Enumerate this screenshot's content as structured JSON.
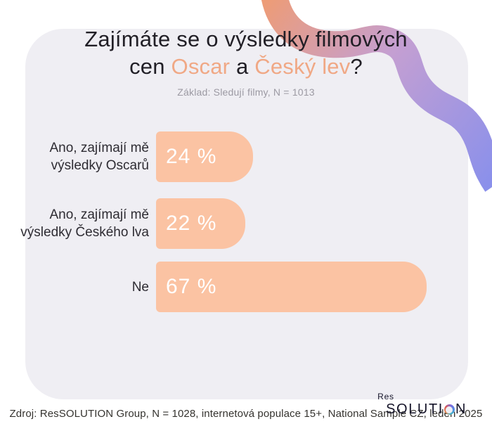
{
  "chart_data": {
    "type": "bar",
    "orientation": "horizontal",
    "title": {
      "line1": "Zajímáte se o výsledky filmových",
      "line2_prefix": "cen ",
      "line2_accent1": "Oscar",
      "line2_middle": " a ",
      "line2_accent2": "Český lev",
      "line2_suffix": "?"
    },
    "subtitle": "Základ: Sledují filmy, N = 1013",
    "categories": [
      "Ano, zajímají mě výsledky Oscarů",
      "Ano, zajímají mě výsledky Českého lva",
      "Ne"
    ],
    "values": [
      24,
      22,
      67
    ],
    "value_labels": [
      "24 %",
      "22 %",
      "67 %"
    ],
    "xlim": [
      0,
      100
    ],
    "grid": false,
    "legend": "none",
    "bar_color": "#FBC3A3",
    "value_text_color": "#FFFFFF"
  },
  "logo": {
    "top": "Res",
    "bottom_part1": "SOLUTI",
    "bottom_o": "O",
    "bottom_part2": "N"
  },
  "source_text": "Zdroj: ResSOLUTION Group, N = 1028, internetová populace 15+, National Sample CZ, leden 2025",
  "colors": {
    "card_background": "#EFEEF3",
    "page_background": "#FFFFFF",
    "title_text": "#211F26",
    "title_accent": "#F0A885",
    "subtitle_text": "#9C9AA3",
    "bar_fill": "#FBC3A3",
    "ribbon_gradient_start": "#ED9C77",
    "ribbon_gradient_mid": "#C49FD2",
    "ribbon_gradient_end": "#8A90EB"
  }
}
